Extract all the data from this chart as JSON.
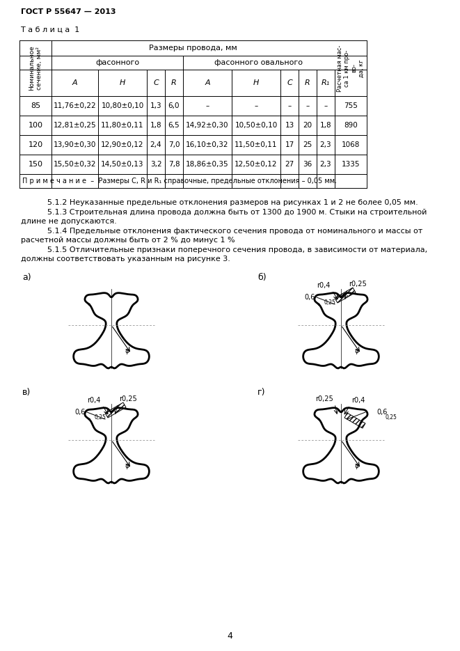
{
  "page_title": "ГОСТ Р 55647 — 2013",
  "table_title": "Т а б л и ц а  1",
  "note": "П р и м е ч а н и е  –  Размеры C, R и R₁ справочные, предельные отклонения – 0,05 мм.",
  "data_rows": [
    [
      "85",
      "11,76±0,22",
      "10,80±0,10",
      "1,3",
      "6,0",
      "–",
      "–",
      "–",
      "–",
      "–",
      "755"
    ],
    [
      "100",
      "12,81±0,25",
      "11,80±0,11",
      "1,8",
      "6,5",
      "14,92±0,30",
      "10,50±0,10",
      "13",
      "20",
      "1,8",
      "890"
    ],
    [
      "120",
      "13,90±0,30",
      "12,90±0,12",
      "2,4",
      "7,0",
      "16,10±0,32",
      "11,50±0,11",
      "17",
      "25",
      "2,3",
      "1068"
    ],
    [
      "150",
      "15,50±0,32",
      "14,50±0,13",
      "3,2",
      "7,8",
      "18,86±0,35",
      "12,50±0,12",
      "27",
      "36",
      "2,3",
      "1335"
    ]
  ],
  "text_5_1_2": "5.1.2 Неуказанные предельные отклонения размеров на рисунках 1 и 2 не более 0,05 мм.",
  "text_5_1_3a": "5.1.3 Строительная длина провода должна быть от 1300 до 1900 м. Стыки на строительной",
  "text_5_1_3b": "длине не допускаются.",
  "text_5_1_4a": "5.1.4 Предельные отклонения фактического сечения провода от номинального и массы от",
  "text_5_1_4b": "расчетной массы должны быть от 2 % до минус 1 %",
  "text_5_1_5a": "5.1.5 Отличительные признаки поперечного сечения провода, в зависимости от материала,",
  "text_5_1_5b": "должны соответствовать указанным на рисунке 3.",
  "page_number": "4"
}
